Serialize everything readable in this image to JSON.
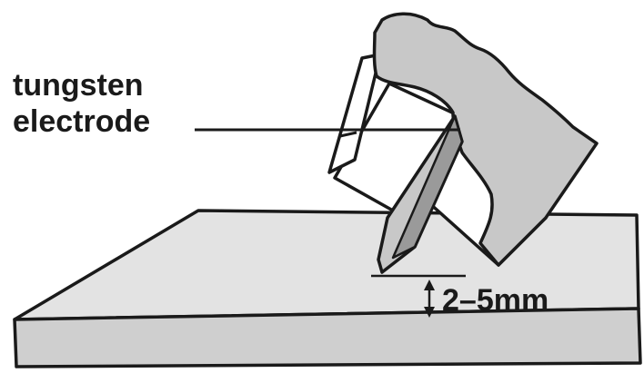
{
  "labels": {
    "electrode_line1": "tungsten",
    "electrode_line2": "electrode",
    "gap": "2–5mm"
  },
  "colors": {
    "outline": "#1a1a1a",
    "plate_top": "#e3e3e3",
    "plate_front": "#cfcfcf",
    "torch_body": "#c8c8c8",
    "electrode_face": "#9a9a9a",
    "background": "#ffffff"
  },
  "parts": [
    "workpiece-plate",
    "tig-torch",
    "tungsten-electrode",
    "arc-gap-dimension"
  ]
}
